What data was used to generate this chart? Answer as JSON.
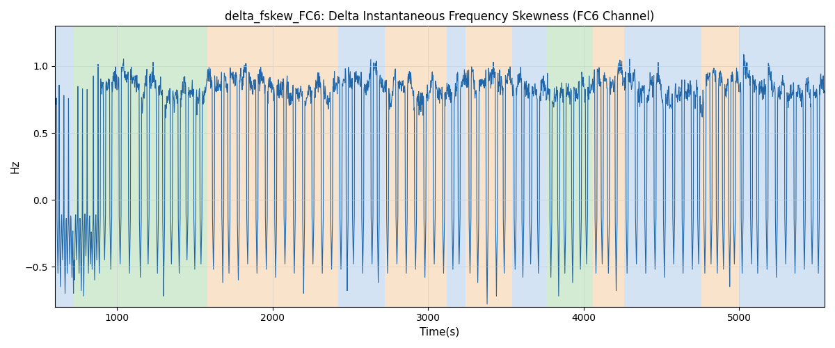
{
  "title": "delta_fskew_FC6: Delta Instantaneous Frequency Skewness (FC6 Channel)",
  "xlabel": "Time(s)",
  "ylabel": "Hz",
  "xlim": [
    600,
    5550
  ],
  "ylim": [
    -0.8,
    1.3
  ],
  "line_color": "#2166a8",
  "line_width": 0.8,
  "bg_regions": [
    {
      "xmin": 600,
      "xmax": 720,
      "color": "#aac8e8",
      "alpha": 0.5
    },
    {
      "xmin": 720,
      "xmax": 1580,
      "color": "#a8d8a8",
      "alpha": 0.5
    },
    {
      "xmin": 1580,
      "xmax": 2420,
      "color": "#f5c898",
      "alpha": 0.5
    },
    {
      "xmin": 2420,
      "xmax": 2720,
      "color": "#aac8e8",
      "alpha": 0.5
    },
    {
      "xmin": 2720,
      "xmax": 3120,
      "color": "#f5c898",
      "alpha": 0.5
    },
    {
      "xmin": 3120,
      "xmax": 3240,
      "color": "#aac8e8",
      "alpha": 0.5
    },
    {
      "xmin": 3240,
      "xmax": 3540,
      "color": "#f5c898",
      "alpha": 0.5
    },
    {
      "xmin": 3540,
      "xmax": 3760,
      "color": "#aac8e8",
      "alpha": 0.5
    },
    {
      "xmin": 3760,
      "xmax": 4060,
      "color": "#a8d8a8",
      "alpha": 0.5
    },
    {
      "xmin": 4060,
      "xmax": 4260,
      "color": "#f5c898",
      "alpha": 0.5
    },
    {
      "xmin": 4260,
      "xmax": 4760,
      "color": "#aac8e8",
      "alpha": 0.5
    },
    {
      "xmin": 4760,
      "xmax": 5000,
      "color": "#f5c898",
      "alpha": 0.5
    },
    {
      "xmin": 5000,
      "xmax": 5550,
      "color": "#aac8e8",
      "alpha": 0.5
    }
  ],
  "yticks": [
    1.0,
    0.5,
    0.0,
    -0.5
  ],
  "xticks": [
    1000,
    2000,
    3000,
    4000,
    5000
  ],
  "title_fontsize": 12,
  "label_fontsize": 11,
  "tick_fontsize": 10
}
